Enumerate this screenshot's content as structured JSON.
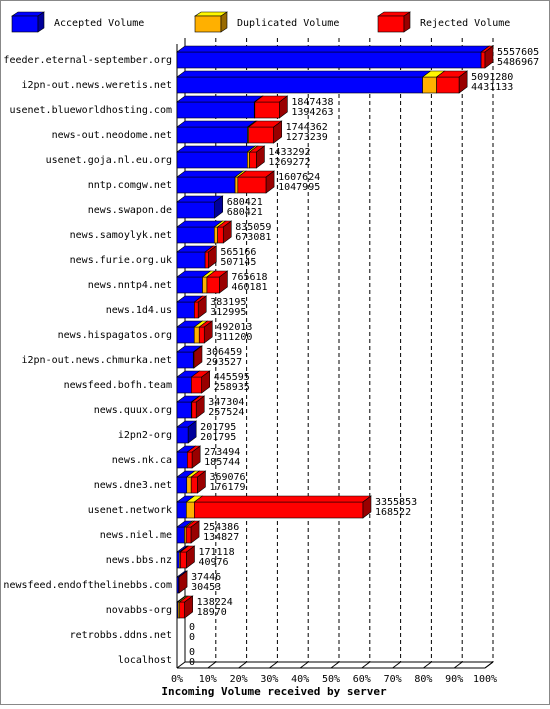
{
  "chart_data": {
    "type": "bar3d",
    "orientation": "horizontal",
    "stacked": true,
    "x_label": "Incoming Volume received by server",
    "categories": [
      "feeder.eternal-september.org",
      "i2pn-out.news.weretis.net",
      "usenet.blueworldhosting.com",
      "news-out.neodome.net",
      "usenet.goja.nl.eu.org",
      "nntp.comgw.net",
      "news.swapon.de",
      "news.samoylyk.net",
      "news.furie.org.uk",
      "news.nntp4.net",
      "news.1d4.us",
      "news.hispagatos.org",
      "i2pn-out.news.chmurka.net",
      "newsfeed.bofh.team",
      "news.quux.org",
      "i2pn2-org",
      "news.nk.ca",
      "news.dne3.net",
      "usenet.network",
      "news.niel.me",
      "news.bbs.nz",
      "newsfeed.endofthelinebbs.com",
      "novabbs-org",
      "retrobbs.ddns.net",
      "localhost"
    ],
    "totals": [
      5557605,
      5091280,
      1847438,
      1744362,
      1433292,
      1607624,
      680421,
      835059,
      565166,
      765618,
      383195,
      492013,
      306459,
      445595,
      347304,
      201795,
      273494,
      369076,
      3355853,
      254386,
      171118,
      37446,
      138224,
      0,
      0
    ],
    "series": [
      {
        "name": "Accepted Volume",
        "color": "#0000ff",
        "values": [
          5486967,
          4431133,
          1394263,
          1273239,
          1269272,
          1047995,
          680421,
          673081,
          507145,
          460181,
          312995,
          311200,
          293527,
          258935,
          257524,
          201795,
          185744,
          176179,
          168522,
          134827,
          40976,
          30453,
          18970,
          0,
          0
        ]
      },
      {
        "name": "Duplicated Volume",
        "color": "#ffb000",
        "values": [
          0,
          253000,
          10000,
          20000,
          40000,
          50000,
          0,
          60000,
          0,
          80000,
          0,
          90000,
          0,
          0,
          10000,
          0,
          0,
          80000,
          144000,
          30000,
          20000,
          0,
          30000,
          0,
          0
        ]
      },
      {
        "name": "Rejected Volume",
        "color": "#ff0000",
        "values": [
          70638,
          407147,
          443175,
          451123,
          124020,
          509629,
          0,
          101978,
          58021,
          225437,
          70200,
          90813,
          12932,
          186660,
          79780,
          0,
          87750,
          112897,
          3043331,
          89559,
          110142,
          6993,
          89254,
          0,
          0
        ]
      }
    ],
    "xlim": [
      0,
      5557605
    ],
    "xticks": [
      {
        "value": 0,
        "label": "0%"
      },
      {
        "value": 555760.5,
        "label": "10%"
      },
      {
        "value": 1111521,
        "label": "20%"
      },
      {
        "value": 1667281.5,
        "label": "30%"
      },
      {
        "value": 2223042,
        "label": "40%"
      },
      {
        "value": 2778802.5,
        "label": "50%"
      },
      {
        "value": 3334563,
        "label": "60%"
      },
      {
        "value": 3890323.5,
        "label": "70%"
      },
      {
        "value": 4446084,
        "label": "80%"
      },
      {
        "value": 5001844.5,
        "label": "90%"
      },
      {
        "value": 5557605,
        "label": "100%"
      }
    ],
    "grid": true
  }
}
